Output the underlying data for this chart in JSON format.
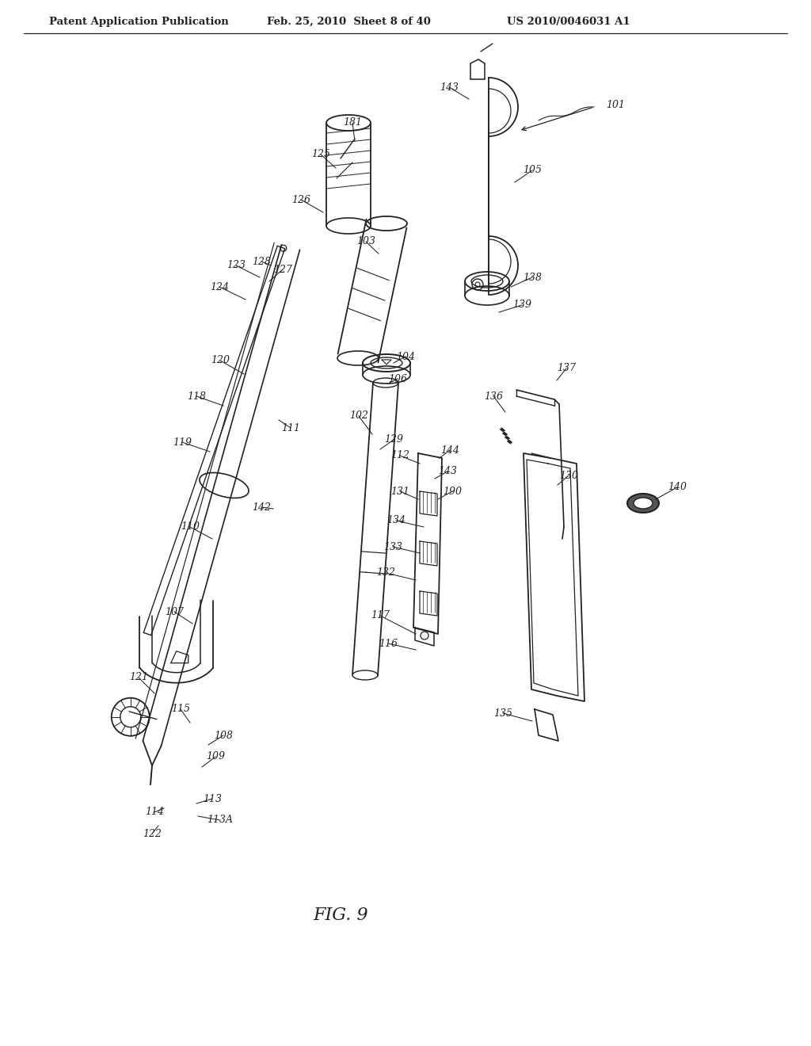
{
  "header_left": "Patent Application Publication",
  "header_center": "Feb. 25, 2010  Sheet 8 of 40",
  "header_right": "US 2010/0046031 A1",
  "fig_label": "FIG. 9",
  "background": "#ffffff",
  "ink": "#222222",
  "figsize": [
    10.24,
    13.2
  ],
  "dpi": 100
}
